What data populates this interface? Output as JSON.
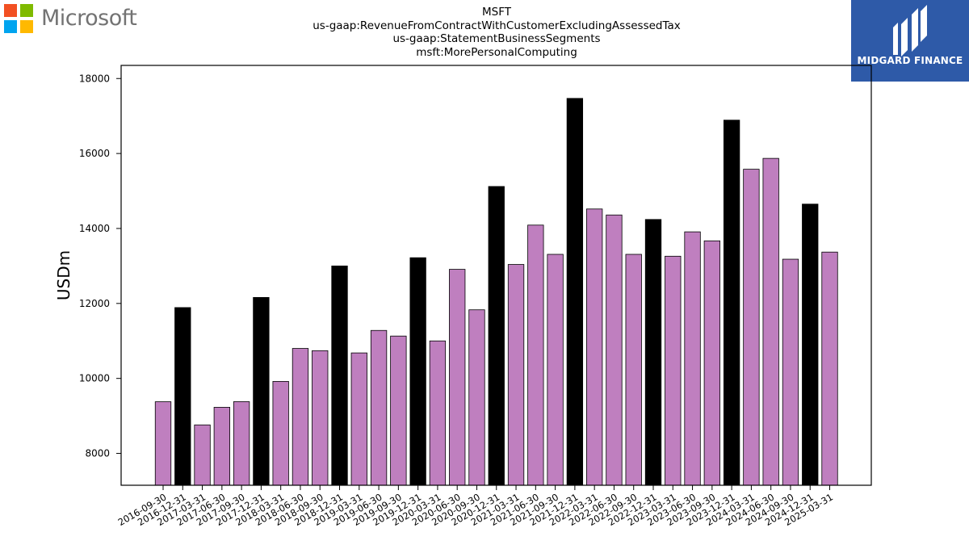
{
  "header": {
    "ms_logo_text": "Microsoft",
    "title_lines": [
      "MSFT",
      "us-gaap:RevenueFromContractWithCustomerExcludingAssessedTax",
      "us-gaap:StatementBusinessSegments",
      "msft:MorePersonalComputing"
    ],
    "brand_logo_text": "MIDGARD FINANCE"
  },
  "colors": {
    "bar_default": "#bf7fbf",
    "bar_highlight": "#000000",
    "ms_red": "#f25022",
    "ms_green": "#7fba00",
    "ms_blue": "#00a4ef",
    "ms_yellow": "#ffb900",
    "brand_blue": "#2e5aa8"
  },
  "chart_data": {
    "type": "bar",
    "ylabel": "USDm",
    "xlabel": "",
    "ylim": [
      7150,
      18350
    ],
    "yticks": [
      8000,
      10000,
      12000,
      14000,
      16000,
      18000
    ],
    "grid": false,
    "categories": [
      "2016-09-30",
      "2016-12-31",
      "2017-03-31",
      "2017-06-30",
      "2017-09-30",
      "2017-12-31",
      "2018-03-31",
      "2018-06-30",
      "2018-09-30",
      "2018-12-31",
      "2019-03-31",
      "2019-06-30",
      "2019-09-30",
      "2019-12-31",
      "2020-03-31",
      "2020-06-30",
      "2020-09-30",
      "2020-12-31",
      "2021-03-31",
      "2021-06-30",
      "2021-09-30",
      "2021-12-31",
      "2022-03-31",
      "2022-06-30",
      "2022-09-30",
      "2022-12-31",
      "2023-03-31",
      "2023-06-30",
      "2023-09-30",
      "2023-12-31",
      "2024-03-31",
      "2024-06-30",
      "2024-09-30",
      "2024-12-31",
      "2025-03-31"
    ],
    "values": [
      9378,
      11890,
      8760,
      9230,
      9380,
      12160,
      9920,
      10800,
      10740,
      13000,
      10680,
      11280,
      11130,
      13220,
      11000,
      12910,
      11830,
      15120,
      13040,
      14090,
      13310,
      17470,
      14520,
      14360,
      13310,
      14240,
      13260,
      13910,
      13670,
      16890,
      15580,
      15870,
      13180,
      14650,
      13370
    ],
    "highlighted": [
      false,
      true,
      false,
      false,
      false,
      true,
      false,
      false,
      false,
      true,
      false,
      false,
      false,
      true,
      false,
      false,
      false,
      true,
      false,
      false,
      false,
      true,
      false,
      false,
      false,
      true,
      false,
      false,
      false,
      true,
      false,
      false,
      false,
      true,
      false
    ]
  }
}
